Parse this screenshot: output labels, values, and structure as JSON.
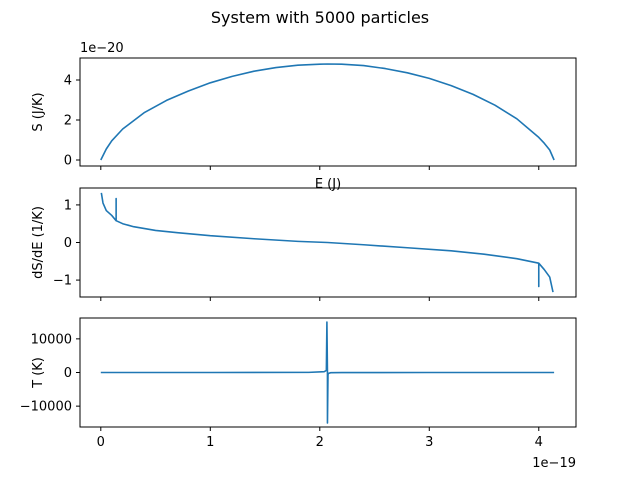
{
  "figure": {
    "title": "System with 5000 particles"
  },
  "chart_data": [
    {
      "type": "line",
      "xlabel": "E (J)",
      "ylabel": "S (J/K)",
      "x_offset_label": "",
      "y_offset_label": "1e−20",
      "xlim": [
        -0.19,
        4.34
      ],
      "ylim": [
        -0.3,
        5.1
      ],
      "yticks": [
        0,
        2,
        4
      ],
      "ytick_labels": [
        "0",
        "2",
        "4"
      ],
      "xticks": [
        0,
        1,
        2,
        3,
        4
      ],
      "xtick_labels": [],
      "series": [
        {
          "color": "#1f77b4",
          "x": [
            0,
            0.05,
            0.1,
            0.2,
            0.4,
            0.6,
            0.8,
            1.0,
            1.2,
            1.4,
            1.6,
            1.8,
            2.0,
            2.07,
            2.2,
            2.4,
            2.6,
            2.8,
            3.0,
            3.2,
            3.4,
            3.6,
            3.8,
            4.0,
            4.05,
            4.1,
            4.14
          ],
          "y": [
            0,
            0.55,
            0.96,
            1.55,
            2.38,
            2.98,
            3.45,
            3.86,
            4.18,
            4.44,
            4.62,
            4.74,
            4.79,
            4.8,
            4.79,
            4.72,
            4.57,
            4.36,
            4.08,
            3.72,
            3.28,
            2.74,
            2.06,
            1.13,
            0.84,
            0.5,
            0
          ]
        }
      ]
    },
    {
      "type": "line",
      "xlabel": "",
      "ylabel": "dS/dE (1/K)",
      "x_offset_label": "",
      "y_offset_label": "",
      "xlim": [
        -0.19,
        4.34
      ],
      "ylim": [
        -1.45,
        1.45
      ],
      "yticks": [
        -1,
        0,
        1
      ],
      "ytick_labels": [
        "−1",
        "0",
        "1"
      ],
      "xticks": [
        0,
        1,
        2,
        3,
        4
      ],
      "xtick_labels": [],
      "series": [
        {
          "color": "#1f77b4",
          "x": [
            0.005,
            0.02,
            0.05,
            0.1,
            0.14,
            0.14,
            0.14,
            0.2,
            0.3,
            0.5,
            0.7,
            1.0,
            1.4,
            1.8,
            2.07,
            2.4,
            2.8,
            3.2,
            3.5,
            3.8,
            4.0,
            4.0,
            4.0,
            4.05,
            4.1,
            4.13
          ],
          "y": [
            1.32,
            1.05,
            0.85,
            0.72,
            0.58,
            1.17,
            0.58,
            0.5,
            0.42,
            0.32,
            0.26,
            0.18,
            0.1,
            0.03,
            0.0,
            -0.06,
            -0.14,
            -0.22,
            -0.31,
            -0.43,
            -0.55,
            -1.17,
            -0.55,
            -0.72,
            -0.92,
            -1.32
          ]
        }
      ]
    },
    {
      "type": "line",
      "xlabel": "",
      "ylabel": "T (K)",
      "x_offset_label": "1e−19",
      "y_offset_label": "",
      "xlim": [
        -0.19,
        4.34
      ],
      "ylim": [
        -16200,
        16200
      ],
      "yticks": [
        -10000,
        0,
        10000
      ],
      "ytick_labels": [
        "−10000",
        "0",
        "10000"
      ],
      "xticks": [
        0,
        1,
        2,
        3,
        4
      ],
      "xtick_labels": [
        "0",
        "1",
        "2",
        "3",
        "4"
      ],
      "series": [
        {
          "color": "#1f77b4",
          "x": [
            0,
            1.0,
            1.9,
            2.04,
            2.06,
            2.065,
            2.07,
            2.07,
            2.075,
            2.08,
            2.1,
            2.2,
            3.0,
            4.14
          ],
          "y": [
            0,
            0,
            40,
            250,
            600,
            15000,
            0,
            -15000,
            -600,
            -250,
            -60,
            -20,
            0,
            0
          ]
        }
      ]
    }
  ]
}
